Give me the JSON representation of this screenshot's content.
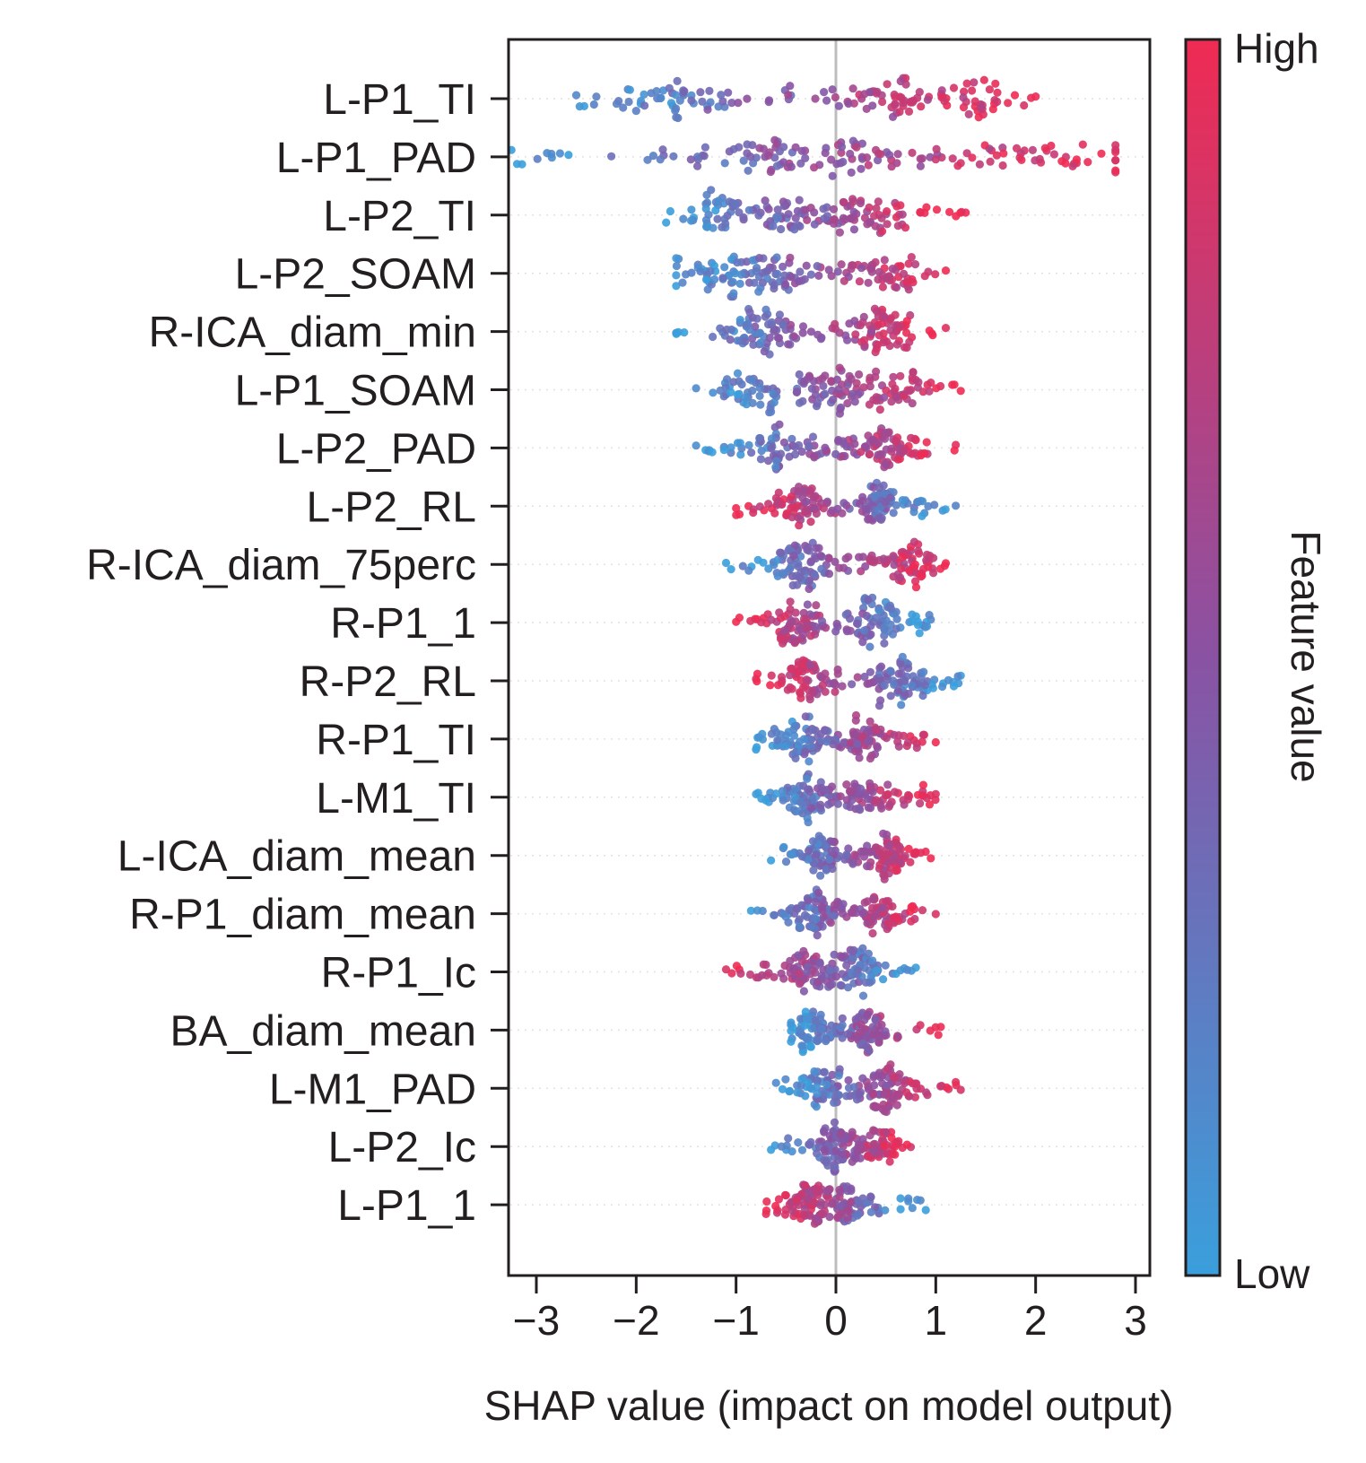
{
  "chart_data": {
    "type": "scatter",
    "subtype": "shap-beeswarm",
    "xlabel": "SHAP value (impact on model output)",
    "xlim": [
      -3.5,
      3.1
    ],
    "xticks": [
      -3,
      -2,
      -1,
      0,
      1,
      2,
      3
    ],
    "xtick_labels": [
      "−3",
      "−2",
      "−1",
      "0",
      "1",
      "2",
      "3"
    ],
    "colorbar": {
      "label": "Feature value",
      "high_label": "High",
      "low_label": "Low",
      "low_color": "#3a9fdc",
      "mid_color": "#8a52a3",
      "high_color": "#ef2b53"
    },
    "features": [
      {
        "name": "L-P1_TI",
        "min": -2.6,
        "max": 2.0,
        "peaks": [
          -1.5,
          0.6,
          1.3
        ],
        "corr": 1
      },
      {
        "name": "L-P1_PAD",
        "min": -3.25,
        "max": 2.8,
        "peaks": [
          -0.5,
          0.4,
          2.3
        ],
        "corr": 1
      },
      {
        "name": "L-P2_TI",
        "min": -1.7,
        "max": 1.3,
        "peaks": [
          -1.2,
          -0.4,
          0.4
        ],
        "corr": 1
      },
      {
        "name": "L-P2_SOAM",
        "min": -1.6,
        "max": 1.1,
        "peaks": [
          -1.1,
          -0.6,
          0.5
        ],
        "corr": 1
      },
      {
        "name": "R-ICA_diam_min",
        "min": -1.6,
        "max": 1.1,
        "peaks": [
          -0.7,
          0.5
        ],
        "corr": 1
      },
      {
        "name": "L-P1_SOAM",
        "min": -1.4,
        "max": 1.25,
        "peaks": [
          -0.85,
          -0.1,
          0.5
        ],
        "corr": 1
      },
      {
        "name": "L-P2_PAD",
        "min": -1.4,
        "max": 1.2,
        "peaks": [
          -0.6,
          0.5
        ],
        "corr": 1
      },
      {
        "name": "L-P2_RL",
        "min": -1.0,
        "max": 1.2,
        "peaks": [
          -0.35,
          0.45
        ],
        "corr": -1
      },
      {
        "name": "R-ICA_diam_75perc",
        "min": -1.1,
        "max": 1.1,
        "peaks": [
          -0.3,
          0.7
        ],
        "corr": 1
      },
      {
        "name": "R-P1_1",
        "min": -1.0,
        "max": 0.95,
        "peaks": [
          -0.4,
          0.4
        ],
        "corr": -1
      },
      {
        "name": "R-P2_RL",
        "min": -0.8,
        "max": 1.25,
        "peaks": [
          -0.3,
          0.7
        ],
        "corr": -1
      },
      {
        "name": "R-P1_TI",
        "min": -0.8,
        "max": 1.0,
        "peaks": [
          -0.3,
          0.3
        ],
        "corr": 1
      },
      {
        "name": "L-M1_TI",
        "min": -0.8,
        "max": 1.0,
        "peaks": [
          -0.3,
          0.3
        ],
        "corr": 1
      },
      {
        "name": "L-ICA_diam_mean",
        "min": -0.65,
        "max": 0.95,
        "peaks": [
          -0.1,
          0.5
        ],
        "corr": 1
      },
      {
        "name": "R-P1_diam_mean",
        "min": -0.85,
        "max": 1.0,
        "peaks": [
          -0.2,
          0.4
        ],
        "corr": 1
      },
      {
        "name": "R-P1_Ic",
        "min": -1.1,
        "max": 0.8,
        "peaks": [
          -0.3,
          0.2
        ],
        "corr": -1
      },
      {
        "name": "BA_diam_mean",
        "min": -0.45,
        "max": 1.05,
        "peaks": [
          -0.25,
          0.3
        ],
        "corr": 1
      },
      {
        "name": "L-M1_PAD",
        "min": -0.6,
        "max": 1.25,
        "peaks": [
          -0.1,
          0.5
        ],
        "corr": 1
      },
      {
        "name": "L-P2_Ic",
        "min": -0.65,
        "max": 0.75,
        "peaks": [
          0.0,
          0.4
        ],
        "corr": 1
      },
      {
        "name": "L-P1_1",
        "min": -0.7,
        "max": 0.9,
        "peaks": [
          -0.3,
          0.1
        ],
        "corr": -1
      }
    ]
  }
}
